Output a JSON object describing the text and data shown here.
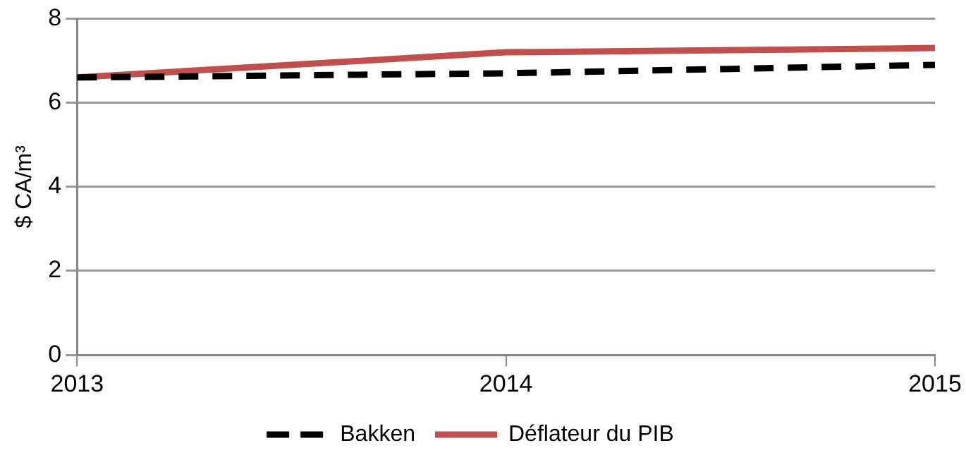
{
  "chart_data": {
    "type": "line",
    "ylabel": "$ CA/m³",
    "categories": [
      "2013",
      "2014",
      "2015"
    ],
    "series": [
      {
        "name": "Bakken",
        "color": "#000000",
        "line_style": "dashed",
        "values": [
          6.6,
          6.7,
          6.9
        ]
      },
      {
        "name": "Déflateur du PIB",
        "color": "#c0504d",
        "line_style": "solid",
        "values": [
          6.6,
          7.2,
          7.3
        ]
      }
    ],
    "ylim": [
      0,
      8
    ],
    "yticks": [
      0,
      2,
      4,
      6,
      8
    ],
    "grid": "y",
    "legend": "bottom",
    "marker": "none"
  }
}
